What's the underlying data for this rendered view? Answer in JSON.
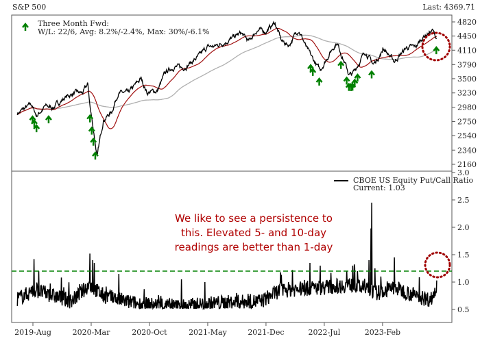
{
  "header": {
    "title": "S&P 500",
    "last": "Last: 4369.71"
  },
  "annotation": {
    "lines": [
      "We like to see a persistence to",
      "this.  Elevated 5- and 10-day",
      "readings are better than 1-day"
    ]
  },
  "colors": {
    "price": "#000000",
    "ma_short": "#a01010",
    "ma_long": "#b0b0b0",
    "signal": "#008000",
    "threshold": "#008000",
    "circle": "#a00000",
    "annotation": "#b00000"
  },
  "chart_data": [
    {
      "type": "line",
      "title": "S&P 500",
      "scale": "log",
      "yticks": [
        4820,
        4450,
        4110,
        3790,
        3500,
        3230,
        2980,
        2750,
        2540,
        2340,
        2160
      ],
      "ylim": [
        2160,
        4820
      ],
      "legend": {
        "line1": "Three Month Fwd:",
        "line2": "W/L: 22/6, Avg: 8.2%/-2.4%, Max: 30%/-6.1%",
        "placement": "top-left"
      },
      "last_value": 4369.71,
      "moving_averages": [
        {
          "name": "short",
          "window_days": 50
        },
        {
          "name": "long",
          "window_days": 200
        }
      ],
      "anchors": [
        [
          "2019-06-05",
          2880
        ],
        [
          "2019-07-26",
          3025
        ],
        [
          "2019-08-14",
          2840
        ],
        [
          "2019-09-15",
          2990
        ],
        [
          "2019-10-15",
          2980
        ],
        [
          "2019-11-28",
          3150
        ],
        [
          "2019-12-31",
          3230
        ],
        [
          "2020-01-31",
          3225
        ],
        [
          "2020-02-19",
          3386
        ],
        [
          "2020-02-28",
          2954
        ],
        [
          "2020-03-23",
          2237
        ],
        [
          "2020-04-15",
          2780
        ],
        [
          "2020-05-15",
          2900
        ],
        [
          "2020-06-08",
          3230
        ],
        [
          "2020-07-15",
          3220
        ],
        [
          "2020-08-31",
          3500
        ],
        [
          "2020-09-23",
          3237
        ],
        [
          "2020-10-30",
          3270
        ],
        [
          "2020-11-30",
          3621
        ],
        [
          "2020-12-31",
          3756
        ],
        [
          "2021-01-29",
          3714
        ],
        [
          "2021-02-26",
          3811
        ],
        [
          "2021-03-31",
          3973
        ],
        [
          "2021-04-30",
          4181
        ],
        [
          "2021-05-28",
          4204
        ],
        [
          "2021-06-30",
          4297
        ],
        [
          "2021-07-30",
          4395
        ],
        [
          "2021-08-31",
          4523
        ],
        [
          "2021-09-30",
          4307
        ],
        [
          "2021-10-29",
          4605
        ],
        [
          "2021-11-30",
          4567
        ],
        [
          "2022-01-03",
          4796
        ],
        [
          "2022-01-27",
          4326
        ],
        [
          "2022-02-24",
          4225
        ],
        [
          "2022-03-29",
          4631
        ],
        [
          "2022-04-29",
          4131
        ],
        [
          "2022-05-20",
          3900
        ],
        [
          "2022-06-16",
          3666
        ],
        [
          "2022-07-29",
          4130
        ],
        [
          "2022-08-16",
          4305
        ],
        [
          "2022-09-30",
          3585
        ],
        [
          "2022-10-12",
          3577
        ],
        [
          "2022-11-30",
          4080
        ],
        [
          "2022-12-28",
          3783
        ],
        [
          "2023-01-31",
          4077
        ],
        [
          "2023-02-02",
          4179
        ],
        [
          "2023-03-13",
          3855
        ],
        [
          "2023-04-28",
          4169
        ],
        [
          "2023-05-31",
          4180
        ],
        [
          "2023-06-30",
          4450
        ],
        [
          "2023-07-31",
          4589
        ],
        [
          "2023-08-18",
          4369.71
        ]
      ],
      "signals": [
        "2019-07-30",
        "2019-08-06",
        "2019-08-14",
        "2019-09-28",
        "2020-02-27",
        "2020-03-03",
        "2020-03-09",
        "2020-03-16",
        "2022-05-12",
        "2022-05-20",
        "2022-06-13",
        "2022-09-01",
        "2022-09-22",
        "2022-09-30",
        "2022-10-07",
        "2022-10-13",
        "2022-10-21",
        "2022-11-01",
        "2022-12-22",
        "2023-08-15"
      ]
    },
    {
      "type": "line",
      "title": "CBOE US Equity Put/Call Ratio",
      "legend": {
        "label": "CBOE US Equity Put/Call Ratio",
        "current": "Current: 1.03",
        "placement": "top-right"
      },
      "yticks": [
        "3.0",
        "2.5",
        "2.0",
        "1.5",
        "1.0",
        "0.5"
      ],
      "ylim": [
        0.25,
        3.0
      ],
      "threshold": 1.2,
      "current": 1.03,
      "baseline": [
        [
          "2019-06-05",
          0.7
        ],
        [
          "2019-08-10",
          0.85
        ],
        [
          "2019-12-20",
          0.65
        ],
        [
          "2020-02-25",
          0.95
        ],
        [
          "2020-04-15",
          0.75
        ],
        [
          "2020-08-15",
          0.6
        ],
        [
          "2021-01-15",
          0.55
        ],
        [
          "2021-06-15",
          0.62
        ],
        [
          "2021-11-15",
          0.65
        ],
        [
          "2022-01-20",
          0.85
        ],
        [
          "2022-06-15",
          0.9
        ],
        [
          "2022-10-15",
          0.95
        ],
        [
          "2023-01-15",
          0.8
        ],
        [
          "2023-03-15",
          0.9
        ],
        [
          "2023-06-15",
          0.72
        ],
        [
          "2023-07-25",
          0.68
        ],
        [
          "2023-08-10",
          0.82
        ],
        [
          "2023-08-18",
          1.03
        ]
      ],
      "spikes": [
        [
          "2019-08-05",
          1.42
        ],
        [
          "2019-08-23",
          1.2
        ],
        [
          "2020-02-27",
          1.52
        ],
        [
          "2020-03-06",
          1.4
        ],
        [
          "2020-03-12",
          1.35
        ],
        [
          "2020-06-11",
          1.15
        ],
        [
          "2021-01-27",
          1.05
        ],
        [
          "2022-01-24",
          1.18
        ],
        [
          "2022-03-07",
          1.22
        ],
        [
          "2022-05-09",
          1.35
        ],
        [
          "2022-06-16",
          1.3
        ],
        [
          "2022-09-23",
          1.2
        ],
        [
          "2022-10-13",
          1.3
        ],
        [
          "2022-11-01",
          1.2
        ],
        [
          "2022-12-12",
          1.4
        ],
        [
          "2022-12-19",
          1.98
        ],
        [
          "2022-12-23",
          2.45
        ],
        [
          "2023-01-03",
          1.25
        ],
        [
          "2023-03-13",
          1.45
        ],
        [
          "2023-08-16",
          1.3
        ]
      ]
    }
  ],
  "xaxis": {
    "ticks": [
      "2019-Aug",
      "2020-Mar",
      "2020-Oct",
      "2021-May",
      "2021-Dec",
      "2022-Jul",
      "2023-Feb"
    ]
  }
}
